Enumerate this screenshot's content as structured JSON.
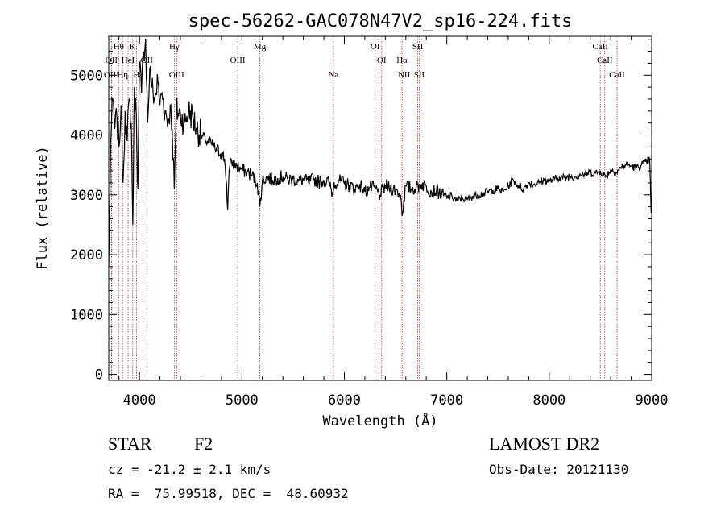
{
  "chart_data": {
    "type": "line",
    "title": "spec-56262-GAC078N47V2_sp16-224.fits",
    "xlabel": "Wavelength (Å)",
    "ylabel": "Flux (relative)",
    "xlim": [
      3700,
      9000
    ],
    "ylim": [
      -100,
      5650
    ],
    "xticks": [
      4000,
      5000,
      6000,
      7000,
      8000,
      9000
    ],
    "yticks": [
      0,
      1000,
      2000,
      3000,
      4000,
      5000
    ],
    "grid": false,
    "line_color": "#000000",
    "marker_color": "#b03030",
    "spectrum": {
      "x": [
        3700,
        3720,
        3740,
        3760,
        3780,
        3800,
        3820,
        3840,
        3860,
        3880,
        3900,
        3920,
        3935,
        3950,
        3970,
        3985,
        4000,
        4020,
        4040,
        4060,
        4080,
        4100,
        4120,
        4150,
        4180,
        4200,
        4220,
        4250,
        4280,
        4300,
        4320,
        4340,
        4360,
        4400,
        4440,
        4480,
        4520,
        4560,
        4600,
        4650,
        4700,
        4750,
        4800,
        4830,
        4850,
        4861,
        4875,
        4900,
        4950,
        5000,
        5050,
        5100,
        5150,
        5175,
        5200,
        5250,
        5300,
        5350,
        5400,
        5450,
        5500,
        5550,
        5600,
        5650,
        5700,
        5750,
        5800,
        5850,
        5890,
        5900,
        5950,
        6000,
        6050,
        6100,
        6150,
        6200,
        6250,
        6300,
        6350,
        6400,
        6450,
        6500,
        6550,
        6563,
        6580,
        6600,
        6650,
        6700,
        6750,
        6800,
        6850,
        6900,
        6950,
        7000,
        7050,
        7100,
        7150,
        7200,
        7250,
        7300,
        7350,
        7400,
        7450,
        7500,
        7550,
        7600,
        7650,
        7700,
        7750,
        7800,
        7850,
        7900,
        7950,
        8000,
        8050,
        8100,
        8150,
        8200,
        8250,
        8300,
        8350,
        8400,
        8450,
        8500,
        8550,
        8600,
        8650,
        8700,
        8750,
        8800,
        8850,
        8900,
        8950,
        8980,
        8995
      ],
      "y": [
        1800,
        3900,
        4600,
        4100,
        4300,
        3800,
        4500,
        3200,
        4400,
        3900,
        4600,
        4200,
        2500,
        4800,
        4300,
        3100,
        5200,
        4700,
        5400,
        5600,
        4200,
        5100,
        4800,
        4600,
        4900,
        4500,
        4700,
        4400,
        4200,
        4500,
        4100,
        3100,
        4400,
        4350,
        4200,
        4400,
        4300,
        4100,
        4000,
        3900,
        3850,
        3750,
        3700,
        3600,
        3200,
        2750,
        3400,
        3550,
        3480,
        3420,
        3380,
        3330,
        3200,
        2800,
        3250,
        3300,
        3250,
        3280,
        3300,
        3250,
        3270,
        3230,
        3250,
        3210,
        3260,
        3220,
        3240,
        3200,
        3000,
        3210,
        3230,
        3190,
        3160,
        3100,
        3180,
        3050,
        3130,
        3100,
        3000,
        3150,
        3120,
        3080,
        3000,
        2650,
        2900,
        3150,
        3100,
        3120,
        3180,
        3150,
        3050,
        3080,
        3000,
        2950,
        2980,
        2900,
        2950,
        2920,
        2980,
        3000,
        3020,
        3050,
        3080,
        3100,
        3050,
        3150,
        3250,
        3150,
        3100,
        3200,
        3180,
        3200,
        3250,
        3230,
        3260,
        3300,
        3280,
        3320,
        3300,
        3350,
        3330,
        3380,
        3360,
        3400,
        3300,
        3420,
        3380,
        3450,
        3500,
        3480,
        3450,
        3500,
        3550,
        3600,
        2700
      ]
    },
    "line_markers": [
      {
        "label": "Hθ",
        "x": 3797,
        "row": 0
      },
      {
        "label": "K",
        "x": 3934,
        "row": 0
      },
      {
        "label": "Hγ",
        "x": 4340,
        "row": 0
      },
      {
        "label": "Mg",
        "x": 5175,
        "row": 0
      },
      {
        "label": "OI",
        "x": 6300,
        "row": 0
      },
      {
        "label": "SII",
        "x": 6716,
        "row": 0
      },
      {
        "label": "CaII",
        "x": 8498,
        "row": 0
      },
      {
        "label": "OII",
        "x": 3727,
        "row": 1
      },
      {
        "label": "HeI",
        "x": 3889,
        "row": 1
      },
      {
        "label": "OII",
        "x": 4072,
        "row": 1
      },
      {
        "label": "OIII",
        "x": 4959,
        "row": 1
      },
      {
        "label": "OI",
        "x": 6364,
        "row": 1
      },
      {
        "label": "Hα",
        "x": 6563,
        "row": 1
      },
      {
        "label": "CaII",
        "x": 8542,
        "row": 1
      },
      {
        "label": "OIII",
        "x": 3727,
        "row": 2
      },
      {
        "label": "Hη",
        "x": 3835,
        "row": 2
      },
      {
        "label": "H",
        "x": 3970,
        "row": 2
      },
      {
        "label": "OIII",
        "x": 4363,
        "row": 2
      },
      {
        "label": "Na",
        "x": 5893,
        "row": 2
      },
      {
        "label": "NII",
        "x": 6583,
        "row": 2
      },
      {
        "label": "SII",
        "x": 6731,
        "row": 2
      },
      {
        "label": "CaII",
        "x": 8662,
        "row": 2
      }
    ]
  },
  "info": {
    "class_label": "STAR",
    "subclass_label": "F2",
    "redshift_text": "cz = -21.2 ± 2.1 km/s",
    "coords_text": "RA =  75.99518, DEC =  48.60932",
    "survey_label": "LAMOST DR2",
    "obs_date_text": "Obs-Date: 20121130"
  }
}
